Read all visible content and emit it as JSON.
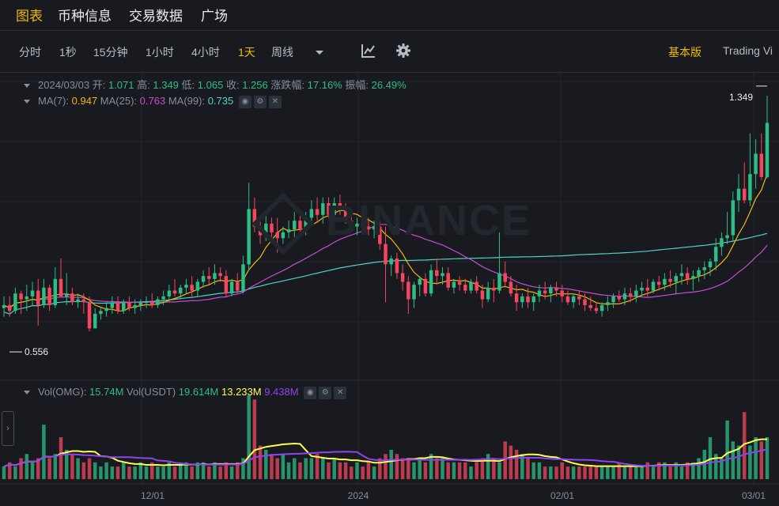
{
  "top_tabs": [
    {
      "label": "图表",
      "active": true
    },
    {
      "label": "币种信息"
    },
    {
      "label": "交易数据"
    },
    {
      "label": "广场"
    }
  ],
  "intervals": [
    {
      "label": "分时"
    },
    {
      "label": "1秒"
    },
    {
      "label": "15分钟"
    },
    {
      "label": "1小时"
    },
    {
      "label": "4小时"
    },
    {
      "label": "1天",
      "active": true
    },
    {
      "label": "周线"
    }
  ],
  "toolbar": {
    "basic_label": "基本版",
    "tradingview_label": "Trading Vi",
    "accent": "#f0b90b"
  },
  "ohlc": {
    "date": "2024/03/03",
    "open_label": "开:",
    "open": "1.071",
    "high_label": "高:",
    "high": "1.349",
    "low_label": "低:",
    "low": "1.065",
    "close_label": "收:",
    "close": "1.256",
    "change_label": "涨跌幅:",
    "change": "17.16%",
    "amplitude_label": "振幅:",
    "amplitude": "26.49%"
  },
  "ma": {
    "ma7_label": "MA(7):",
    "ma7": "0.947",
    "ma7_color": "#f0b90b",
    "ma25_label": "MA(25):",
    "ma25": "0.763",
    "ma25_color": "#c74dcf",
    "ma99_label": "MA(99):",
    "ma99": "0.735",
    "ma99_color": "#50d2c2"
  },
  "vol": {
    "omg_label": "Vol(OMG):",
    "omg": "15.74M",
    "usdt_label": "Vol(USDT)",
    "usdt": "19.614M",
    "v2": "13.233M",
    "v3": "9.438M"
  },
  "watermark": "BINANCE",
  "colors": {
    "up": "#2ebd85",
    "down": "#f6465d",
    "ma7": "#f0b90b",
    "ma25": "#c74dcf",
    "ma99": "#50d2c2",
    "vol_ma1": "#fcfc56",
    "vol_ma2": "#8e44ec"
  },
  "chart_data": {
    "type": "candlestick",
    "interval": "1d",
    "x_ticks": [
      "12/01",
      "2024",
      "02/01",
      "03/01"
    ],
    "price_max_label": "1.349",
    "price_min_label": "0.556",
    "ylim": [
      0.38,
      1.42
    ],
    "vol_ylim": [
      0,
      20
    ],
    "candles": [
      [
        0.62,
        0.66,
        0.59,
        0.63
      ],
      [
        0.63,
        0.66,
        0.59,
        0.61
      ],
      [
        0.61,
        0.69,
        0.6,
        0.67
      ],
      [
        0.67,
        0.68,
        0.6,
        0.65
      ],
      [
        0.65,
        0.7,
        0.61,
        0.66
      ],
      [
        0.66,
        0.71,
        0.63,
        0.68
      ],
      [
        0.68,
        0.72,
        0.56,
        0.63
      ],
      [
        0.63,
        0.72,
        0.62,
        0.69
      ],
      [
        0.69,
        0.7,
        0.61,
        0.63
      ],
      [
        0.63,
        0.76,
        0.62,
        0.72
      ],
      [
        0.72,
        0.79,
        0.66,
        0.66
      ],
      [
        0.66,
        0.74,
        0.63,
        0.67
      ],
      [
        0.67,
        0.69,
        0.63,
        0.64
      ],
      [
        0.64,
        0.67,
        0.62,
        0.65
      ],
      [
        0.65,
        0.67,
        0.6,
        0.64
      ],
      [
        0.64,
        0.66,
        0.54,
        0.55
      ],
      [
        0.55,
        0.62,
        0.55,
        0.6
      ],
      [
        0.6,
        0.62,
        0.58,
        0.61
      ],
      [
        0.61,
        0.64,
        0.59,
        0.62
      ],
      [
        0.62,
        0.66,
        0.6,
        0.64
      ],
      [
        0.64,
        0.66,
        0.6,
        0.61
      ],
      [
        0.61,
        0.65,
        0.6,
        0.64
      ],
      [
        0.64,
        0.66,
        0.61,
        0.62
      ],
      [
        0.62,
        0.65,
        0.6,
        0.63
      ],
      [
        0.63,
        0.65,
        0.61,
        0.64
      ],
      [
        0.64,
        0.66,
        0.62,
        0.64
      ],
      [
        0.64,
        0.67,
        0.62,
        0.63
      ],
      [
        0.63,
        0.66,
        0.62,
        0.65
      ],
      [
        0.65,
        0.68,
        0.63,
        0.66
      ],
      [
        0.66,
        0.7,
        0.64,
        0.68
      ],
      [
        0.68,
        0.72,
        0.66,
        0.67
      ],
      [
        0.67,
        0.7,
        0.65,
        0.69
      ],
      [
        0.69,
        0.72,
        0.67,
        0.7
      ],
      [
        0.7,
        0.73,
        0.66,
        0.68
      ],
      [
        0.68,
        0.72,
        0.66,
        0.71
      ],
      [
        0.71,
        0.75,
        0.69,
        0.73
      ],
      [
        0.73,
        0.76,
        0.7,
        0.72
      ],
      [
        0.72,
        0.77,
        0.7,
        0.74
      ],
      [
        0.74,
        0.76,
        0.71,
        0.73
      ],
      [
        0.73,
        0.75,
        0.66,
        0.67
      ],
      [
        0.67,
        0.72,
        0.66,
        0.71
      ],
      [
        0.71,
        0.74,
        0.67,
        0.68
      ],
      [
        0.68,
        0.8,
        0.67,
        0.77
      ],
      [
        0.77,
        1.05,
        0.75,
        0.96
      ],
      [
        0.96,
        1.0,
        0.88,
        0.9
      ],
      [
        0.9,
        0.92,
        0.84,
        0.87
      ],
      [
        0.87,
        0.94,
        0.85,
        0.91
      ],
      [
        0.91,
        0.93,
        0.86,
        0.88
      ],
      [
        0.88,
        0.93,
        0.81,
        0.86
      ],
      [
        0.86,
        0.9,
        0.84,
        0.88
      ],
      [
        0.88,
        0.92,
        0.86,
        0.89
      ],
      [
        0.89,
        0.95,
        0.86,
        0.92
      ],
      [
        0.92,
        0.94,
        0.87,
        0.89
      ],
      [
        0.89,
        0.95,
        0.87,
        0.93
      ],
      [
        0.93,
        0.99,
        0.9,
        0.96
      ],
      [
        0.96,
        1.0,
        0.92,
        0.94
      ],
      [
        0.94,
        1.0,
        0.91,
        0.98
      ],
      [
        0.98,
        1.0,
        0.93,
        0.94
      ],
      [
        0.94,
        1.0,
        0.92,
        0.98
      ],
      [
        0.98,
        1.01,
        0.94,
        0.96
      ],
      [
        0.96,
        0.98,
        0.91,
        0.92
      ],
      [
        0.92,
        0.95,
        0.88,
        0.9
      ],
      [
        0.9,
        0.93,
        0.87,
        0.91
      ],
      [
        0.91,
        0.94,
        0.89,
        0.9
      ],
      [
        0.9,
        0.93,
        0.87,
        0.89
      ],
      [
        0.89,
        0.92,
        0.86,
        0.9
      ],
      [
        0.9,
        0.92,
        0.82,
        0.84
      ],
      [
        0.84,
        0.9,
        0.64,
        0.77
      ],
      [
        0.77,
        0.8,
        0.73,
        0.79
      ],
      [
        0.79,
        0.81,
        0.72,
        0.74
      ],
      [
        0.74,
        0.77,
        0.68,
        0.71
      ],
      [
        0.71,
        0.73,
        0.6,
        0.65
      ],
      [
        0.65,
        0.71,
        0.62,
        0.7
      ],
      [
        0.7,
        0.73,
        0.66,
        0.72
      ],
      [
        0.72,
        0.74,
        0.66,
        0.67
      ],
      [
        0.67,
        0.77,
        0.66,
        0.75
      ],
      [
        0.75,
        0.79,
        0.7,
        0.73
      ],
      [
        0.73,
        0.76,
        0.7,
        0.74
      ],
      [
        0.74,
        0.76,
        0.68,
        0.69
      ],
      [
        0.69,
        0.72,
        0.67,
        0.71
      ],
      [
        0.71,
        0.73,
        0.68,
        0.7
      ],
      [
        0.7,
        0.72,
        0.67,
        0.68
      ],
      [
        0.68,
        0.72,
        0.67,
        0.71
      ],
      [
        0.71,
        0.73,
        0.67,
        0.68
      ],
      [
        0.68,
        0.7,
        0.62,
        0.65
      ],
      [
        0.65,
        0.71,
        0.64,
        0.69
      ],
      [
        0.69,
        0.72,
        0.64,
        0.68
      ],
      [
        0.68,
        0.88,
        0.67,
        0.74
      ],
      [
        0.74,
        0.78,
        0.69,
        0.71
      ],
      [
        0.71,
        0.73,
        0.66,
        0.67
      ],
      [
        0.67,
        0.7,
        0.61,
        0.64
      ],
      [
        0.64,
        0.67,
        0.62,
        0.66
      ],
      [
        0.66,
        0.69,
        0.62,
        0.64
      ],
      [
        0.64,
        0.67,
        0.61,
        0.66
      ],
      [
        0.66,
        0.7,
        0.64,
        0.68
      ],
      [
        0.68,
        0.71,
        0.65,
        0.67
      ],
      [
        0.67,
        0.7,
        0.64,
        0.69
      ],
      [
        0.69,
        0.71,
        0.66,
        0.68
      ],
      [
        0.68,
        0.7,
        0.64,
        0.66
      ],
      [
        0.66,
        0.68,
        0.63,
        0.64
      ],
      [
        0.64,
        0.67,
        0.62,
        0.66
      ],
      [
        0.66,
        0.68,
        0.63,
        0.65
      ],
      [
        0.65,
        0.67,
        0.61,
        0.63
      ],
      [
        0.63,
        0.66,
        0.61,
        0.62
      ],
      [
        0.62,
        0.64,
        0.6,
        0.61
      ],
      [
        0.61,
        0.64,
        0.59,
        0.63
      ],
      [
        0.63,
        0.66,
        0.61,
        0.64
      ],
      [
        0.64,
        0.67,
        0.62,
        0.66
      ],
      [
        0.66,
        0.68,
        0.64,
        0.65
      ],
      [
        0.65,
        0.69,
        0.63,
        0.67
      ],
      [
        0.67,
        0.69,
        0.64,
        0.66
      ],
      [
        0.66,
        0.7,
        0.64,
        0.68
      ],
      [
        0.68,
        0.71,
        0.66,
        0.69
      ],
      [
        0.69,
        0.72,
        0.66,
        0.68
      ],
      [
        0.68,
        0.72,
        0.67,
        0.71
      ],
      [
        0.71,
        0.73,
        0.68,
        0.7
      ],
      [
        0.7,
        0.74,
        0.68,
        0.72
      ],
      [
        0.72,
        0.75,
        0.69,
        0.71
      ],
      [
        0.71,
        0.74,
        0.67,
        0.73
      ],
      [
        0.73,
        0.77,
        0.7,
        0.74
      ],
      [
        0.74,
        0.76,
        0.7,
        0.72
      ],
      [
        0.72,
        0.75,
        0.68,
        0.73
      ],
      [
        0.73,
        0.76,
        0.71,
        0.75
      ],
      [
        0.75,
        0.78,
        0.72,
        0.76
      ],
      [
        0.76,
        0.79,
        0.73,
        0.78
      ],
      [
        0.78,
        0.86,
        0.75,
        0.83
      ],
      [
        0.83,
        0.88,
        0.8,
        0.86
      ],
      [
        0.86,
        0.95,
        0.84,
        0.87
      ],
      [
        0.87,
        1.02,
        0.85,
        0.99
      ],
      [
        0.99,
        1.08,
        0.95,
        1.03
      ],
      [
        1.03,
        1.12,
        0.98,
        0.99
      ],
      [
        0.99,
        1.22,
        0.97,
        1.08
      ],
      [
        1.08,
        1.2,
        1.03,
        1.15
      ],
      [
        1.15,
        1.22,
        1.06,
        1.07
      ],
      [
        1.07,
        1.349,
        1.065,
        1.256
      ]
    ],
    "volumes": [
      3,
      4,
      3,
      5,
      6,
      4,
      5,
      13,
      5,
      6,
      10,
      7,
      6,
      5,
      4,
      5,
      4,
      3,
      4,
      3,
      3,
      4,
      3,
      3,
      4,
      3,
      4,
      3,
      3,
      4,
      3,
      4,
      4,
      3,
      4,
      4,
      3,
      4,
      3,
      4,
      3,
      4,
      5,
      20,
      19,
      8,
      7,
      6,
      5,
      6,
      4,
      5,
      4,
      5,
      5,
      6,
      5,
      4,
      5,
      4,
      4,
      3,
      4,
      3,
      4,
      3,
      5,
      6,
      7,
      6,
      5,
      5,
      4,
      5,
      4,
      6,
      5,
      5,
      4,
      4,
      4,
      4,
      3,
      4,
      5,
      6,
      5,
      4,
      9,
      8,
      7,
      6,
      5,
      4,
      4,
      3,
      3,
      3,
      4,
      3,
      3,
      3,
      3,
      3,
      3,
      3,
      3,
      3,
      4,
      3,
      3,
      3,
      3,
      4,
      3,
      4,
      4,
      3,
      4,
      3,
      4,
      4,
      5,
      7,
      10,
      6,
      5,
      14,
      9,
      8,
      16,
      8,
      10,
      9,
      10
    ]
  }
}
